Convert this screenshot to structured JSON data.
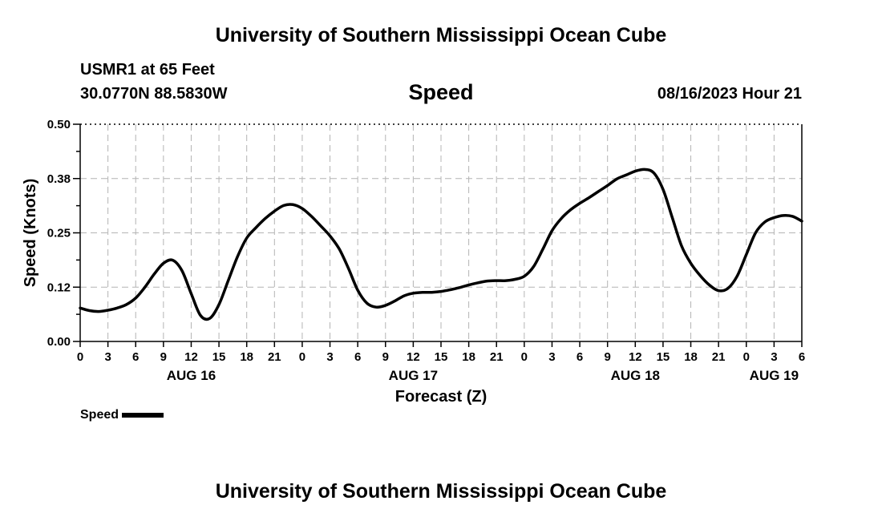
{
  "header": {
    "title": "University of Southern Mississippi Ocean Cube",
    "station": "USMR1 at 65 Feet",
    "coords": "30.0770N  88.5830W",
    "plot_title": "Speed",
    "datetime": "08/16/2023 Hour 21"
  },
  "footer": {
    "title": "University of Southern Mississippi Ocean Cube"
  },
  "legend": {
    "label": "Speed"
  },
  "chart_data": {
    "type": "line",
    "title": "Speed",
    "xlabel": "Forecast (Z)",
    "ylabel": "Speed (Knots)",
    "x_unit": "hours since AUG 16 00Z",
    "xlim": [
      0,
      78
    ],
    "ylim": [
      0,
      0.5
    ],
    "yticks": [
      0.0,
      0.125,
      0.25,
      0.375,
      0.5
    ],
    "ytick_labels": [
      "0.00",
      "0.12",
      "0.25",
      "0.38",
      "0.50"
    ],
    "xticks": [
      0,
      3,
      6,
      9,
      12,
      15,
      18,
      21,
      24,
      27,
      30,
      33,
      36,
      39,
      42,
      45,
      48,
      51,
      54,
      57,
      60,
      63,
      66,
      69,
      72,
      75,
      78
    ],
    "xtick_labels": [
      "0",
      "3",
      "6",
      "9",
      "12",
      "15",
      "18",
      "21",
      "0",
      "3",
      "6",
      "9",
      "12",
      "15",
      "18",
      "21",
      "0",
      "3",
      "6",
      "9",
      "12",
      "15",
      "18",
      "21",
      "0",
      "3",
      "6"
    ],
    "date_labels": [
      {
        "text": "AUG 16",
        "hour": 12
      },
      {
        "text": "AUG 17",
        "hour": 36
      },
      {
        "text": "AUG 18",
        "hour": 60
      },
      {
        "text": "AUG 19",
        "hour": 75
      }
    ],
    "grid": true,
    "legend_position": "bottom-left",
    "series": [
      {
        "name": "Speed",
        "color": "#000000",
        "x": [
          0,
          1,
          2,
          3,
          4,
          5,
          6,
          7,
          8,
          9,
          10,
          11,
          12,
          13,
          14,
          15,
          16,
          17,
          18,
          19,
          20,
          21,
          22,
          23,
          24,
          25,
          26,
          27,
          28,
          29,
          30,
          31,
          32,
          33,
          34,
          35,
          36,
          37,
          38,
          39,
          40,
          41,
          42,
          43,
          44,
          45,
          46,
          47,
          48,
          49,
          50,
          51,
          52,
          53,
          54,
          55,
          56,
          57,
          58,
          59,
          60,
          61,
          62,
          63,
          64,
          65,
          66,
          67,
          68,
          69,
          70,
          71,
          72,
          73,
          74,
          75,
          76,
          77,
          78
        ],
        "values": [
          0.077,
          0.071,
          0.069,
          0.072,
          0.077,
          0.085,
          0.1,
          0.125,
          0.155,
          0.18,
          0.187,
          0.163,
          0.11,
          0.06,
          0.053,
          0.085,
          0.14,
          0.195,
          0.238,
          0.262,
          0.283,
          0.3,
          0.313,
          0.315,
          0.306,
          0.288,
          0.266,
          0.243,
          0.213,
          0.168,
          0.118,
          0.088,
          0.079,
          0.083,
          0.093,
          0.105,
          0.111,
          0.113,
          0.113,
          0.115,
          0.119,
          0.124,
          0.13,
          0.135,
          0.139,
          0.14,
          0.14,
          0.143,
          0.15,
          0.172,
          0.212,
          0.255,
          0.283,
          0.303,
          0.318,
          0.331,
          0.345,
          0.359,
          0.374,
          0.383,
          0.392,
          0.396,
          0.388,
          0.35,
          0.285,
          0.22,
          0.18,
          0.152,
          0.13,
          0.117,
          0.122,
          0.15,
          0.2,
          0.25,
          0.275,
          0.285,
          0.29,
          0.288,
          0.277
        ]
      }
    ]
  }
}
